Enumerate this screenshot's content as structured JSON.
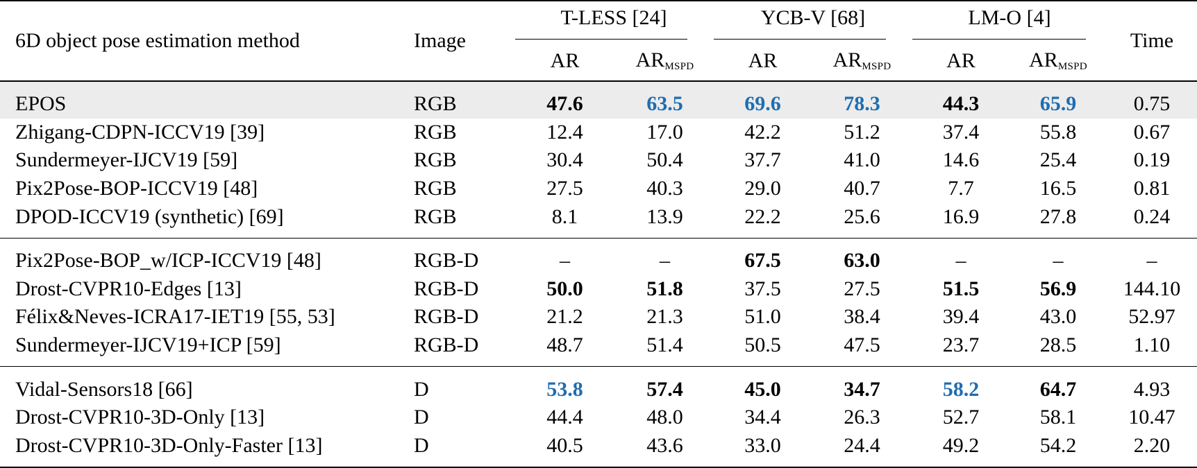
{
  "header": {
    "method": "6D object pose estimation method",
    "image": "Image",
    "time": "Time",
    "groups": [
      {
        "label": "T-LESS [24]"
      },
      {
        "label": "YCB-V [68]"
      },
      {
        "label": "LM-O [4]"
      }
    ],
    "metric_ar": "AR",
    "metric_ar_mspd_main": "AR",
    "metric_ar_mspd_sub": "MSPD"
  },
  "sections": [
    {
      "rows": [
        {
          "method": "EPOS",
          "image": "RGB",
          "highlight": true,
          "values": [
            "47.6",
            "63.5",
            "69.6",
            "78.3",
            "44.3",
            "65.9"
          ],
          "time": "0.75",
          "style": [
            "second",
            "best",
            "best",
            "best",
            "second",
            "best"
          ]
        },
        {
          "method": "Zhigang-CDPN-ICCV19 [39]",
          "image": "RGB",
          "values": [
            "12.4",
            "17.0",
            "42.2",
            "51.2",
            "37.4",
            "55.8"
          ],
          "time": "0.67",
          "style": [
            "",
            "",
            "",
            "",
            "",
            ""
          ]
        },
        {
          "method": "Sundermeyer-IJCV19 [59]",
          "image": "RGB",
          "values": [
            "30.4",
            "50.4",
            "37.7",
            "41.0",
            "14.6",
            "25.4"
          ],
          "time": "0.19",
          "style": [
            "",
            "",
            "",
            "",
            "",
            ""
          ]
        },
        {
          "method": "Pix2Pose-BOP-ICCV19 [48]",
          "image": "RGB",
          "values": [
            "27.5",
            "40.3",
            "29.0",
            "40.7",
            "7.7",
            "16.5"
          ],
          "time": "0.81",
          "style": [
            "",
            "",
            "",
            "",
            "",
            ""
          ]
        },
        {
          "method": "DPOD-ICCV19 (synthetic) [69]",
          "image": "RGB",
          "values": [
            "8.1",
            "13.9",
            "22.2",
            "25.6",
            "16.9",
            "27.8"
          ],
          "time": "0.24",
          "style": [
            "",
            "",
            "",
            "",
            "",
            ""
          ]
        }
      ]
    },
    {
      "rows": [
        {
          "method": "Pix2Pose-BOP_w/ICP-ICCV19 [48]",
          "image": "RGB-D",
          "values": [
            "–",
            "–",
            "67.5",
            "63.0",
            "–",
            "–"
          ],
          "time": "–",
          "style": [
            "",
            "",
            "second",
            "second",
            "",
            ""
          ]
        },
        {
          "method": "Drost-CVPR10-Edges [13]",
          "image": "RGB-D",
          "values": [
            "50.0",
            "51.8",
            "37.5",
            "27.5",
            "51.5",
            "56.9"
          ],
          "time": "144.10",
          "style": [
            "second",
            "second",
            "",
            "",
            "second",
            "second"
          ]
        },
        {
          "method": "Félix&Neves-ICRA17-IET19 [55, 53]",
          "image": "RGB-D",
          "values": [
            "21.2",
            "21.3",
            "51.0",
            "38.4",
            "39.4",
            "43.0"
          ],
          "time": "52.97",
          "style": [
            "",
            "",
            "",
            "",
            "",
            ""
          ]
        },
        {
          "method": "Sundermeyer-IJCV19+ICP [59]",
          "image": "RGB-D",
          "values": [
            "48.7",
            "51.4",
            "50.5",
            "47.5",
            "23.7",
            "28.5"
          ],
          "time": "1.10",
          "style": [
            "",
            "",
            "",
            "",
            "",
            ""
          ]
        }
      ]
    },
    {
      "rows": [
        {
          "method": "Vidal-Sensors18 [66]",
          "image": "D",
          "values": [
            "53.8",
            "57.4",
            "45.0",
            "34.7",
            "58.2",
            "64.7"
          ],
          "time": "4.93",
          "style": [
            "best",
            "second",
            "second",
            "second",
            "best",
            "second"
          ]
        },
        {
          "method": "Drost-CVPR10-3D-Only [13]",
          "image": "D",
          "values": [
            "44.4",
            "48.0",
            "34.4",
            "26.3",
            "52.7",
            "58.1"
          ],
          "time": "10.47",
          "style": [
            "",
            "",
            "",
            "",
            "",
            ""
          ]
        },
        {
          "method": "Drost-CVPR10-3D-Only-Faster [13]",
          "image": "D",
          "values": [
            "40.5",
            "43.6",
            "33.0",
            "24.4",
            "49.2",
            "54.2"
          ],
          "time": "2.20",
          "style": [
            "",
            "",
            "",
            "",
            "",
            ""
          ]
        }
      ]
    }
  ]
}
